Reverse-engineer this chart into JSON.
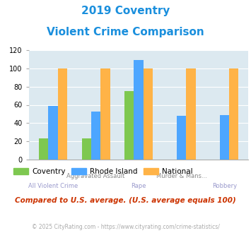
{
  "title_line1": "2019 Coventry",
  "title_line2": "Violent Crime Comparison",
  "title_color": "#1a8fdd",
  "categories": [
    "All Violent Crime",
    "Aggravated Assault",
    "Rape",
    "Murder & Mans...",
    "Robbery"
  ],
  "x_labels_top": [
    "",
    "Aggravated Assault",
    "",
    "Murder & Mans...",
    ""
  ],
  "x_labels_bottom": [
    "All Violent Crime",
    "",
    "Rape",
    "",
    "Robbery"
  ],
  "coventry": [
    23,
    23,
    75,
    0,
    0
  ],
  "rhode_island": [
    59,
    53,
    109,
    48,
    49
  ],
  "national": [
    100,
    100,
    100,
    100,
    100
  ],
  "coventry_color": "#7ec850",
  "rhode_island_color": "#4da6ff",
  "national_color": "#ffb347",
  "ylim": [
    0,
    120
  ],
  "yticks": [
    0,
    20,
    40,
    60,
    80,
    100,
    120
  ],
  "bar_width": 0.22,
  "background_color": "#dce9f0",
  "note": "Compared to U.S. average. (U.S. average equals 100)",
  "note_color": "#cc3300",
  "footer": "© 2025 CityRating.com - https://www.cityrating.com/crime-statistics/",
  "footer_color": "#aaaaaa",
  "legend_labels": [
    "Coventry",
    "Rhode Island",
    "National"
  ],
  "xlabel_top_color": "#888888",
  "xlabel_bottom_color": "#9999cc"
}
